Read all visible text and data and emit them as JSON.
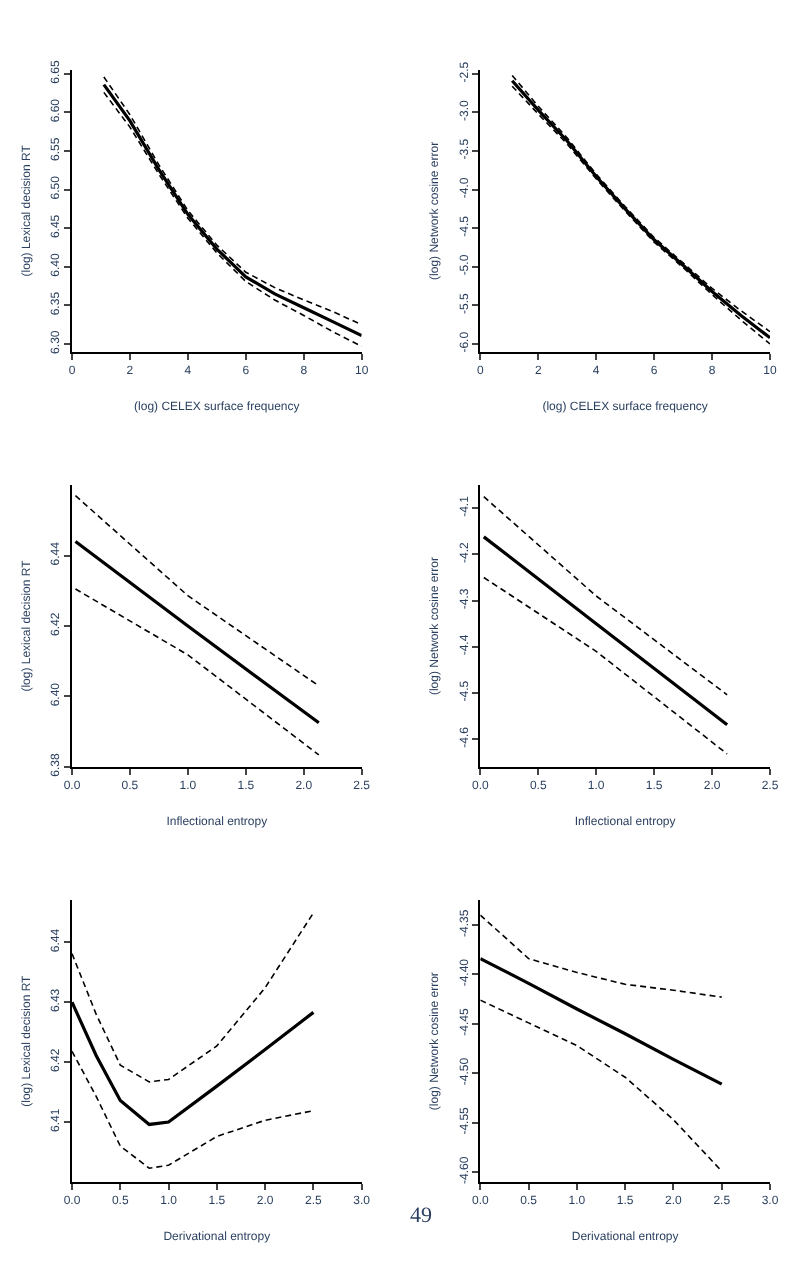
{
  "chart_data": [
    {
      "type": "line",
      "xlabel": "(log) CELEX surface frequency",
      "ylabel": "(log) Lexical decision RT",
      "x": [
        1.1,
        2,
        3,
        4,
        5,
        6,
        7,
        8,
        9,
        10
      ],
      "xlim": [
        0,
        10
      ],
      "xticks": [
        0,
        2,
        4,
        6,
        8,
        10
      ],
      "ylim": [
        6.29,
        6.655
      ],
      "yticks": [
        {
          "value": 6.3,
          "label": "6.30"
        },
        6.35,
        {
          "value": 6.4,
          "label": "6.40"
        },
        6.45,
        {
          "value": 6.5,
          "label": "6.50"
        },
        6.55,
        {
          "value": 6.6,
          "label": "6.60"
        },
        6.65
      ],
      "series": [
        {
          "color": "#000000",
          "line_style": "solid",
          "values": [
            6.636,
            6.589,
            6.526,
            6.468,
            6.423,
            6.387,
            6.365,
            6.347,
            6.329,
            6.311
          ]
        },
        {
          "color": "#000000",
          "line_style": "dashed",
          "values": [
            6.626,
            6.581,
            6.52,
            6.463,
            6.418,
            6.381,
            6.357,
            6.337,
            6.316,
            6.297
          ]
        },
        {
          "color": "#000000",
          "line_style": "dashed",
          "values": [
            6.646,
            6.597,
            6.532,
            6.473,
            6.428,
            6.393,
            6.373,
            6.357,
            6.342,
            6.325
          ]
        }
      ]
    },
    {
      "type": "line",
      "xlabel": "(log) CELEX surface frequency",
      "ylabel": "(log) Network cosine error",
      "x": [
        1.1,
        2,
        3,
        4,
        5,
        6,
        7,
        8,
        9,
        10
      ],
      "xlim": [
        0,
        10
      ],
      "xticks": [
        0,
        2,
        4,
        6,
        8,
        10
      ],
      "ylim": [
        -6.1,
        -2.45
      ],
      "yticks": [
        -2.5,
        {
          "value": -3,
          "label": "-3.0"
        },
        -3.5,
        {
          "value": -4,
          "label": "-4.0"
        },
        -4.5,
        {
          "value": -5,
          "label": "-5.0"
        },
        -5.5,
        {
          "value": -6,
          "label": "-6.0"
        }
      ],
      "series": [
        {
          "color": "#000000",
          "line_style": "solid",
          "values": [
            -2.59,
            -2.97,
            -3.37,
            -3.83,
            -4.25,
            -4.65,
            -4.98,
            -5.32,
            -5.63,
            -5.92
          ]
        },
        {
          "color": "#000000",
          "line_style": "dashed",
          "values": [
            -2.66,
            -3.02,
            -3.41,
            -3.86,
            -4.28,
            -4.68,
            -5.01,
            -5.36,
            -5.69,
            -6.0
          ]
        },
        {
          "color": "#000000",
          "line_style": "dashed",
          "values": [
            -2.52,
            -2.92,
            -3.33,
            -3.8,
            -4.22,
            -4.62,
            -4.95,
            -5.28,
            -5.57,
            -5.84
          ]
        }
      ]
    },
    {
      "type": "line",
      "xlabel": "Inflectional entropy",
      "ylabel": "(log) Lexical decision RT",
      "x": [
        0.03,
        1.0,
        2.13
      ],
      "xlim": [
        0,
        2.5
      ],
      "xticks": [
        {
          "value": 0,
          "label": "0.0"
        },
        0.5,
        {
          "value": 1,
          "label": "1.0"
        },
        1.5,
        {
          "value": 2,
          "label": "2.0"
        },
        2.5
      ],
      "ylim": [
        6.38,
        6.46
      ],
      "yticks": [
        6.38,
        {
          "value": 6.4,
          "label": "6.40"
        },
        6.42,
        6.44
      ],
      "series": [
        {
          "color": "#000000",
          "line_style": "solid",
          "values": [
            6.444,
            6.42,
            6.3925
          ]
        },
        {
          "color": "#000000",
          "line_style": "dashed",
          "values": [
            6.4305,
            6.4118,
            6.3834
          ]
        },
        {
          "color": "#000000",
          "line_style": "dashed",
          "values": [
            6.457,
            6.4286,
            6.403
          ]
        }
      ]
    },
    {
      "type": "line",
      "xlabel": "Inflectional entropy",
      "ylabel": "(log) Network cosine error",
      "x": [
        0.03,
        1.0,
        2.13
      ],
      "xlim": [
        0,
        2.5
      ],
      "xticks": [
        {
          "value": 0,
          "label": "0.0"
        },
        0.5,
        {
          "value": 1,
          "label": "1.0"
        },
        1.5,
        {
          "value": 2,
          "label": "2.0"
        },
        2.5
      ],
      "ylim": [
        -4.66,
        -4.05
      ],
      "yticks": [
        -4.1,
        -4.2,
        -4.3,
        -4.4,
        -4.5,
        -4.6
      ],
      "series": [
        {
          "color": "#000000",
          "line_style": "solid",
          "values": [
            -4.162,
            -4.35,
            -4.569
          ]
        },
        {
          "color": "#000000",
          "line_style": "dashed",
          "values": [
            -4.25,
            -4.41,
            -4.632
          ]
        },
        {
          "color": "#000000",
          "line_style": "dashed",
          "values": [
            -4.075,
            -4.29,
            -4.504
          ]
        }
      ]
    },
    {
      "type": "line",
      "xlabel": "Derivational entropy",
      "ylabel": "(log) Lexical decision RT",
      "x": [
        0,
        0.25,
        0.5,
        0.8,
        1.0,
        1.5,
        2.0,
        2.5
      ],
      "xlim": [
        0,
        3.0
      ],
      "xticks": [
        {
          "value": 0,
          "label": "0.0"
        },
        0.5,
        {
          "value": 1,
          "label": "1.0"
        },
        1.5,
        {
          "value": 2,
          "label": "2.0"
        },
        2.5,
        {
          "value": 3,
          "label": "3.0"
        }
      ],
      "ylim": [
        6.4,
        6.447
      ],
      "yticks": [
        6.41,
        6.42,
        6.43,
        6.44
      ],
      "series": [
        {
          "color": "#000000",
          "line_style": "solid",
          "values": [
            6.43,
            6.4211,
            6.4136,
            6.4096,
            6.41,
            6.416,
            6.4221,
            6.4283
          ]
        },
        {
          "color": "#000000",
          "line_style": "dashed",
          "values": [
            6.4218,
            6.4143,
            6.406,
            6.4023,
            6.4028,
            6.4076,
            6.4103,
            6.4119
          ]
        },
        {
          "color": "#000000",
          "line_style": "dashed",
          "values": [
            6.4381,
            6.428,
            6.4195,
            6.4167,
            6.4171,
            6.4227,
            6.4324,
            6.4449
          ]
        }
      ]
    },
    {
      "type": "line",
      "xlabel": "Derivational entropy",
      "ylabel": "(log) Network cosine error",
      "x": [
        0,
        0.5,
        1.0,
        1.5,
        2.0,
        2.5
      ],
      "xlim": [
        0,
        3.0
      ],
      "xticks": [
        {
          "value": 0,
          "label": "0.0"
        },
        0.5,
        {
          "value": 1,
          "label": "1.0"
        },
        1.5,
        {
          "value": 2,
          "label": "2.0"
        },
        2.5,
        {
          "value": 3,
          "label": "3.0"
        }
      ],
      "ylim": [
        -4.61,
        -4.325
      ],
      "yticks": [
        -4.35,
        {
          "value": -4.4,
          "label": "-4.40"
        },
        -4.45,
        {
          "value": -4.5,
          "label": "-4.50"
        },
        -4.55,
        {
          "value": -4.6,
          "label": "-4.60"
        }
      ],
      "annotations": [
        "49"
      ],
      "series": [
        {
          "color": "#000000",
          "line_style": "solid",
          "values": [
            -4.384,
            -4.409,
            -4.435,
            -4.46,
            -4.486,
            -4.511
          ]
        },
        {
          "color": "#000000",
          "line_style": "dashed",
          "values": [
            -4.426,
            -4.449,
            -4.472,
            -4.504,
            -4.547,
            -4.599
          ]
        },
        {
          "color": "#000000",
          "line_style": "dashed",
          "values": [
            -4.34,
            -4.384,
            -4.398,
            -4.41,
            -4.416,
            -4.423
          ]
        }
      ]
    }
  ]
}
